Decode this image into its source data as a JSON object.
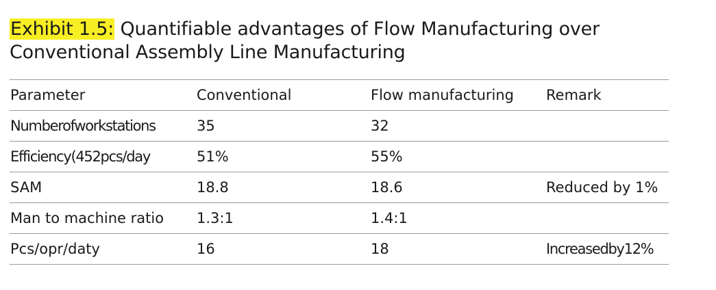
{
  "exhibit": {
    "label": "Exhibit 1.5:",
    "title_line1": "Quantifiable advantages of Flow Manufacturing over",
    "title_line2": "Conventional Assembly Line Manufacturing"
  },
  "table": {
    "columns": [
      "Parameter",
      "Conventional",
      "Flow manufacturing",
      "Remark"
    ],
    "rows": [
      [
        "Numberofworkstations",
        "35",
        "32",
        ""
      ],
      [
        "Efficiency(452pcs/day",
        "51%",
        "55%",
        ""
      ],
      [
        "SAM",
        "18.8",
        "18.6",
        "Reduced by 1%"
      ],
      [
        "Man to machine ratio",
        "1.3:1",
        "1.4:1",
        ""
      ],
      [
        "Pcs/opr/daty",
        "16",
        "18",
        "Increasedby12%"
      ]
    ]
  },
  "colors": {
    "highlight": "#f7ee24",
    "rule": "#9a9a9a",
    "text": "#1a1a1a"
  }
}
